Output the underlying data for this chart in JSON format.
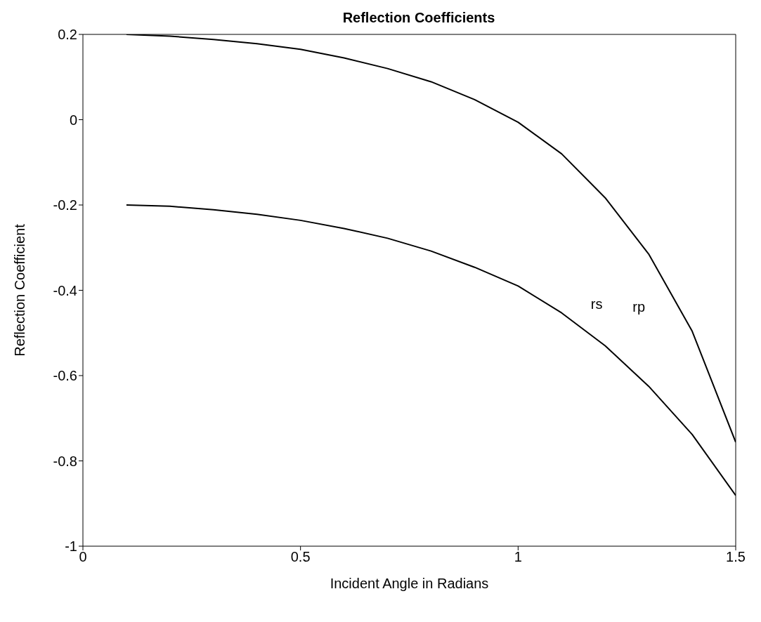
{
  "chart_data": {
    "type": "line",
    "title": "Reflection Coefficients",
    "xlabel": "Incident Angle in Radians",
    "ylabel": "Reflection Coefficient",
    "x": [
      0.1,
      0.2,
      0.3,
      0.4,
      0.5,
      0.6,
      0.7,
      0.8,
      0.9,
      1.0,
      1.1,
      1.2,
      1.3,
      1.4,
      1.5
    ],
    "series": [
      {
        "name": "rp",
        "color": "#000000",
        "values": [
          0.2,
          0.196,
          0.188,
          0.178,
          0.165,
          0.145,
          0.12,
          0.089,
          0.047,
          -0.006,
          -0.08,
          -0.183,
          -0.315,
          -0.496,
          -0.756
        ]
      },
      {
        "name": "rs",
        "color": "#000000",
        "values": [
          -0.2,
          -0.203,
          -0.211,
          -0.222,
          -0.236,
          -0.255,
          -0.278,
          -0.308,
          -0.346,
          -0.39,
          -0.453,
          -0.53,
          -0.625,
          -0.738,
          -0.881
        ]
      }
    ],
    "xlim": [
      0,
      1.5
    ],
    "xticks": [
      0,
      0.5,
      1,
      1.5
    ],
    "ylim": [
      -1,
      0.2
    ],
    "yticks": [
      -1,
      -0.8,
      -0.6,
      -0.4,
      -0.2,
      0,
      0.2
    ],
    "grid": false,
    "legend": false,
    "marker": "none",
    "line_style": "solid"
  }
}
